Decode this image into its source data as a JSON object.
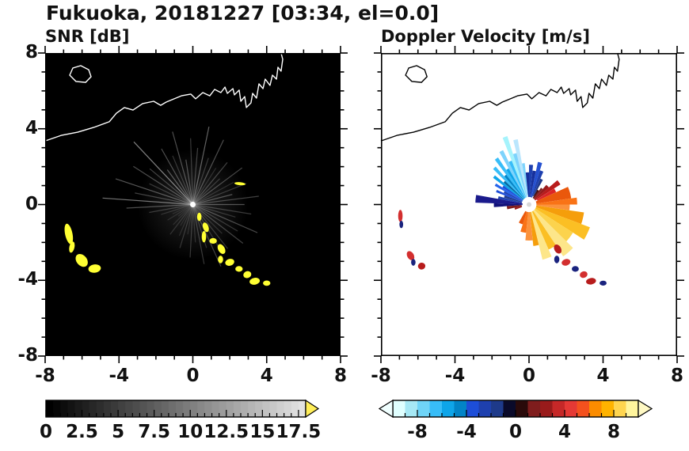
{
  "header": {
    "title": "Fukuoka, 20181227 [03:34, el=0.0]"
  },
  "coastline": {
    "main": [
      [
        -8,
        3.36
      ],
      [
        -7.1,
        3.66
      ],
      [
        -6.24,
        3.82
      ],
      [
        -5.38,
        4.07
      ],
      [
        -4.53,
        4.37
      ],
      [
        -4.14,
        4.82
      ],
      [
        -3.71,
        5.12
      ],
      [
        -3.24,
        4.99
      ],
      [
        -2.72,
        5.33
      ],
      [
        -2.12,
        5.45
      ],
      [
        -1.74,
        5.24
      ],
      [
        -1.44,
        5.41
      ],
      [
        -1.14,
        5.53
      ],
      [
        -0.62,
        5.74
      ],
      [
        -0.11,
        5.83
      ],
      [
        0.15,
        5.58
      ],
      [
        0.54,
        5.91
      ],
      [
        0.92,
        5.74
      ],
      [
        1.18,
        6.08
      ],
      [
        1.52,
        5.91
      ],
      [
        1.74,
        6.2
      ],
      [
        1.87,
        5.87
      ],
      [
        2.17,
        6.12
      ],
      [
        2.25,
        5.79
      ],
      [
        2.51,
        6.04
      ],
      [
        2.6,
        5.45
      ],
      [
        2.81,
        5.7
      ],
      [
        2.9,
        5.12
      ],
      [
        3.15,
        5.37
      ],
      [
        3.24,
        5.87
      ],
      [
        3.45,
        5.62
      ],
      [
        3.58,
        6.37
      ],
      [
        3.8,
        6.12
      ],
      [
        3.92,
        6.62
      ],
      [
        4.18,
        6.29
      ],
      [
        4.31,
        6.83
      ],
      [
        4.53,
        6.62
      ],
      [
        4.61,
        7.25
      ],
      [
        4.78,
        7.04
      ],
      [
        4.87,
        7.67
      ],
      [
        4.78,
        8
      ]
    ],
    "island": [
      [
        -6.67,
        6.83
      ],
      [
        -6.5,
        7.21
      ],
      [
        -6.07,
        7.33
      ],
      [
        -5.64,
        7.12
      ],
      [
        -5.51,
        6.75
      ],
      [
        -5.81,
        6.45
      ],
      [
        -6.33,
        6.5
      ]
    ]
  },
  "chart_data": [
    {
      "id": "snr",
      "type": "heatmap",
      "variant": "radar-ppi",
      "title": "SNR [dB]",
      "xlim": [
        -8,
        8
      ],
      "ylim": [
        -8,
        8
      ],
      "x_tick_values": [
        -8,
        -4,
        0,
        4,
        8
      ],
      "x_tick_labels": [
        "-8",
        "-4",
        "0",
        "4",
        "8"
      ],
      "y_tick_values": [
        8,
        4,
        0,
        -4,
        -8
      ],
      "y_tick_labels": [
        "8",
        "4",
        "0",
        "-4",
        "-8"
      ],
      "minor_tick_step": 1,
      "background": "#000000",
      "coast_color": "#FFFFFF",
      "center": [
        0,
        0
      ],
      "glow": {
        "radius": 3.0,
        "opacity": 0.16
      },
      "center_dot": {
        "radius_px": 3.5,
        "color": "#FFFFFF"
      },
      "rays_color": "#FFFFFF",
      "rays": [
        [
          0,
          2.8,
          0.3
        ],
        [
          7,
          3.6,
          0.25
        ],
        [
          14,
          2.2,
          0.3
        ],
        [
          21,
          3.1,
          0.2
        ],
        [
          28,
          2.5,
          0.15
        ],
        [
          36,
          3.3,
          0.28
        ],
        [
          43,
          2.0,
          0.2
        ],
        [
          50,
          2.9,
          0.25
        ],
        [
          57,
          2.3,
          0.15
        ],
        [
          64,
          3.8,
          0.3
        ],
        [
          71,
          2.6,
          0.2
        ],
        [
          78,
          4.2,
          0.38
        ],
        [
          85,
          3.0,
          0.25
        ],
        [
          92,
          3.5,
          0.22
        ],
        [
          99,
          2.4,
          0.3
        ],
        [
          106,
          4.0,
          0.3
        ],
        [
          113,
          2.8,
          0.2
        ],
        [
          120,
          3.4,
          0.3
        ],
        [
          127,
          2.3,
          0.33
        ],
        [
          134,
          4.6,
          0.5
        ],
        [
          141,
          3.0,
          0.25
        ],
        [
          148,
          3.8,
          0.3
        ],
        [
          155,
          2.6,
          0.2
        ],
        [
          162,
          4.4,
          0.33
        ],
        [
          169,
          3.2,
          0.25
        ],
        [
          176,
          4.9,
          0.45
        ],
        [
          183,
          3.6,
          0.3
        ],
        [
          190,
          2.4,
          0.2
        ],
        [
          197,
          1.8,
          0.15
        ],
        [
          204,
          1.2,
          0.1
        ],
        [
          211,
          1.6,
          0.12
        ],
        [
          218,
          1.0,
          0.1
        ],
        [
          225,
          1.5,
          0.12
        ],
        [
          232,
          2.0,
          0.15
        ],
        [
          239,
          1.3,
          0.1
        ],
        [
          246,
          1.8,
          0.12
        ],
        [
          253,
          2.4,
          0.18
        ],
        [
          260,
          1.6,
          0.12
        ],
        [
          267,
          2.8,
          0.2
        ],
        [
          274,
          2.0,
          0.15
        ],
        [
          281,
          3.2,
          0.22
        ],
        [
          288,
          2.4,
          0.18
        ],
        [
          295,
          3.6,
          0.25
        ],
        [
          302,
          2.6,
          0.18
        ],
        [
          309,
          3.0,
          0.2
        ],
        [
          316,
          2.2,
          0.15
        ],
        [
          323,
          3.4,
          0.25
        ],
        [
          330,
          2.8,
          0.2
        ],
        [
          337,
          3.8,
          0.28
        ],
        [
          344,
          2.4,
          0.18
        ],
        [
          351,
          3.2,
          0.22
        ]
      ],
      "clutter_color": "#FFFF33",
      "clutter_blobs": [
        [
          -6.72,
          -1.55,
          0.2,
          0.55,
          12
        ],
        [
          -6.55,
          -2.25,
          0.14,
          0.3,
          -12
        ],
        [
          -6.02,
          -2.95,
          0.28,
          0.38,
          40
        ],
        [
          -5.32,
          -3.38,
          0.34,
          0.22,
          8
        ],
        [
          0.35,
          -0.65,
          0.12,
          0.22,
          0
        ],
        [
          0.7,
          -1.2,
          0.15,
          0.26,
          20
        ],
        [
          0.6,
          -1.7,
          0.12,
          0.3,
          0
        ],
        [
          1.1,
          -1.92,
          0.2,
          0.15,
          0
        ],
        [
          1.55,
          -2.35,
          0.18,
          0.28,
          30
        ],
        [
          1.5,
          -2.9,
          0.14,
          0.2,
          0
        ],
        [
          2.0,
          -3.05,
          0.25,
          0.18,
          15
        ],
        [
          2.5,
          -3.4,
          0.2,
          0.15,
          0
        ],
        [
          2.95,
          -3.7,
          0.22,
          0.18,
          20
        ],
        [
          3.35,
          -4.05,
          0.28,
          0.18,
          10
        ],
        [
          4.0,
          -4.15,
          0.2,
          0.14,
          0
        ],
        [
          2.55,
          1.1,
          0.3,
          0.08,
          -5
        ]
      ],
      "colorbar": {
        "min": 0,
        "max": 18,
        "tick_values": [
          0,
          2.5,
          5,
          7.5,
          10,
          12.5,
          15,
          17.5
        ],
        "tick_labels": [
          "0",
          "2.5",
          "5",
          "7.5",
          "10",
          "12.5",
          "15",
          "17.5"
        ],
        "minor_tick_step": 0.5,
        "gradient": [
          "#000000",
          "#E2E2E2"
        ],
        "segments": 36,
        "over_arrow_color": "#FFEE58"
      }
    },
    {
      "id": "doppler",
      "type": "heatmap",
      "variant": "radar-ppi",
      "title": "Doppler Velocity [m/s]",
      "xlim": [
        -8,
        8
      ],
      "ylim": [
        -8,
        8
      ],
      "x_tick_values": [
        -8,
        -4,
        0,
        4,
        8
      ],
      "x_tick_labels": [
        "-8",
        "-4",
        "0",
        "4",
        "8"
      ],
      "y_tick_values": [
        8,
        4,
        0,
        -4,
        -8
      ],
      "y_tick_labels": [],
      "minor_tick_step": 1,
      "background": "#FFFFFF",
      "coast_color": "#000000",
      "center": [
        0,
        0
      ],
      "center_dot": {
        "radius_px": 3,
        "color": "#D8D8D8"
      },
      "wedges": [
        [
          96,
          100,
          0.5,
          2.2,
          "#7DD3FC"
        ],
        [
          100,
          104,
          0.4,
          3.5,
          "#BAE6FD"
        ],
        [
          104,
          108,
          0.4,
          2.8,
          "#7DD3FC"
        ],
        [
          108,
          112,
          0.4,
          3.8,
          "#A5F3FC"
        ],
        [
          112,
          116,
          0.4,
          2.5,
          "#38BDF8"
        ],
        [
          116,
          120,
          0.4,
          3.2,
          "#7DD3FC"
        ],
        [
          120,
          124,
          0.4,
          2.2,
          "#0EA5E9"
        ],
        [
          124,
          128,
          0.4,
          3.0,
          "#38BDF8"
        ],
        [
          128,
          132,
          0.4,
          2.0,
          "#0284C7"
        ],
        [
          132,
          136,
          0.4,
          2.7,
          "#38BDF8"
        ],
        [
          136,
          140,
          0.4,
          1.8,
          "#0369A1"
        ],
        [
          140,
          144,
          0.4,
          2.4,
          "#0EA5E9"
        ],
        [
          144,
          148,
          0.4,
          1.7,
          "#1D4ED8"
        ],
        [
          148,
          152,
          0.4,
          2.1,
          "#2563EB"
        ],
        [
          152,
          156,
          0.4,
          1.5,
          "#1E40AF"
        ],
        [
          156,
          160,
          0.4,
          1.9,
          "#1D4ED8"
        ],
        [
          160,
          165,
          0.4,
          1.4,
          "#1E3A8A"
        ],
        [
          165,
          170,
          0.4,
          1.7,
          "#1E40AF"
        ],
        [
          60,
          66,
          0.5,
          1.5,
          "#1E3A8A"
        ],
        [
          66,
          72,
          0.4,
          1.9,
          "#1E40AF"
        ],
        [
          72,
          78,
          0.4,
          2.3,
          "#2450D0"
        ],
        [
          78,
          84,
          0.4,
          1.8,
          "#16309C"
        ],
        [
          84,
          90,
          0.4,
          2.1,
          "#1E40AF"
        ],
        [
          90,
          96,
          0.4,
          1.7,
          "#16309C"
        ],
        [
          24,
          32,
          0.5,
          1.6,
          "#DC2626"
        ],
        [
          32,
          40,
          0.4,
          2.0,
          "#B91C1C"
        ],
        [
          40,
          48,
          0.4,
          1.4,
          "#991B1B"
        ],
        [
          48,
          54,
          0.4,
          1.1,
          "#7F1D1D"
        ],
        [
          54,
          60,
          0.4,
          0.9,
          "#450A0A"
        ],
        [
          8,
          24,
          0.4,
          2.3,
          "#EA580C"
        ],
        [
          0,
          8,
          0.4,
          2.6,
          "#F97316"
        ],
        [
          -8,
          0,
          0.4,
          2.2,
          "#FB923C"
        ],
        [
          -20,
          -8,
          0.4,
          3.0,
          "#F59E0B"
        ],
        [
          -32,
          -20,
          0.4,
          3.5,
          "#FBBF24"
        ],
        [
          -44,
          -32,
          0.4,
          2.8,
          "#FCD34D"
        ],
        [
          -56,
          -44,
          0.4,
          3.3,
          "#FDE68A"
        ],
        [
          -66,
          -56,
          0.4,
          2.6,
          "#FBBF24"
        ],
        [
          -76,
          -66,
          0.4,
          3.0,
          "#FDE68A"
        ],
        [
          -84,
          -76,
          0.4,
          2.2,
          "#F59E0B"
        ],
        [
          -96,
          -84,
          0.4,
          1.9,
          "#FB923C"
        ],
        [
          -108,
          -96,
          0.4,
          1.5,
          "#F97316"
        ],
        [
          -120,
          -108,
          0.4,
          1.1,
          "#EA580C"
        ],
        [
          170,
          178,
          0.35,
          2.9,
          "#1A1A8C"
        ],
        [
          178,
          184,
          0.35,
          1.9,
          "#11117A"
        ],
        [
          184,
          192,
          0.4,
          1.2,
          "#7F1D1D"
        ],
        [
          192,
          200,
          0.4,
          0.8,
          "#991B1B"
        ]
      ],
      "blobs": [
        [
          -6.95,
          -0.6,
          0.12,
          0.32,
          0,
          "#D32F2F"
        ],
        [
          -6.9,
          -1.05,
          0.1,
          0.2,
          0,
          "#1A237E"
        ],
        [
          -6.4,
          -2.7,
          0.18,
          0.26,
          30,
          "#D32F2F"
        ],
        [
          -6.25,
          -3.05,
          0.12,
          0.18,
          0,
          "#1A237E"
        ],
        [
          -5.8,
          -3.25,
          0.2,
          0.18,
          10,
          "#B71C1C"
        ],
        [
          1.55,
          -2.35,
          0.18,
          0.26,
          30,
          "#B71C1C"
        ],
        [
          1.5,
          -2.9,
          0.14,
          0.2,
          0,
          "#1A237E"
        ],
        [
          2.0,
          -3.05,
          0.24,
          0.17,
          15,
          "#D32F2F"
        ],
        [
          2.5,
          -3.4,
          0.19,
          0.15,
          0,
          "#1A237E"
        ],
        [
          2.95,
          -3.7,
          0.21,
          0.17,
          20,
          "#D32F2F"
        ],
        [
          3.35,
          -4.05,
          0.27,
          0.17,
          10,
          "#B71C1C"
        ],
        [
          4.0,
          -4.15,
          0.19,
          0.13,
          0,
          "#1A237E"
        ]
      ],
      "colorbar": {
        "min": -10,
        "max": 10,
        "tick_values": [
          -8,
          -4,
          0,
          4,
          8
        ],
        "tick_labels": [
          "-8",
          "-4",
          "0",
          "4",
          "8"
        ],
        "minor_tick_step": 1,
        "colors": [
          "#E0FFFF",
          "#A6E8F5",
          "#6FD4F7",
          "#38BDF8",
          "#0EA5E9",
          "#0284C7",
          "#1D4ED8",
          "#1E40AF",
          "#1E3A8A",
          "#0A0A2A",
          "#2A0A0A",
          "#7F1D1D",
          "#991B1B",
          "#C62828",
          "#E53935",
          "#F4511E",
          "#FB8C00",
          "#FFB300",
          "#FFD54F",
          "#FFF59D"
        ],
        "under_arrow_color": "#F0FFFF",
        "over_arrow_color": "#FFF9C4"
      }
    }
  ]
}
